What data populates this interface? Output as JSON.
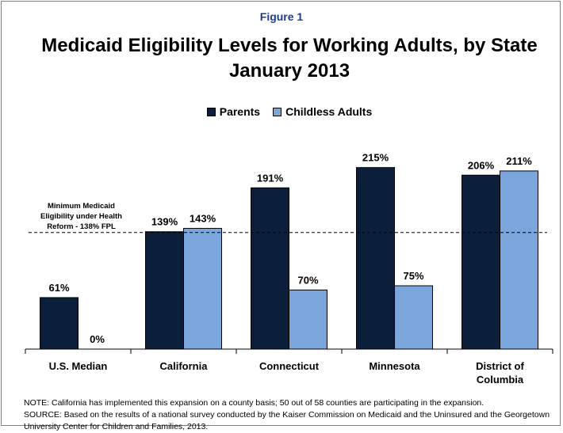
{
  "figure_label": "Figure 1",
  "title_line1": "Medicaid Eligibility Levels for Working Adults, by State",
  "title_line2": "January 2013",
  "reference_label_lines": [
    "Minimum Medicaid",
    "Eligibility under Health",
    "Reform - 138% FPL"
  ],
  "notes": {
    "note": "NOTE: California has implemented this expansion on a county basis; 50 out of 58 counties are participating in the expansion.",
    "source_line1": "SOURCE: Based on the results of a national survey conducted by the Kaiser Commission on Medicaid and the Uninsured and the Georgetown",
    "source_line2": "University Center for Children and Families, 2013."
  },
  "colors": {
    "parents": "#0c1f3a",
    "childless": "#7aa6dc",
    "title_accent": "#1f3b8c"
  },
  "chart_data": {
    "type": "bar",
    "categories": [
      "U.S. Median",
      "California",
      "Connecticut",
      "Minnesota",
      "District of Columbia"
    ],
    "category_label_lines": [
      [
        "U.S. Median"
      ],
      [
        "California"
      ],
      [
        "Connecticut"
      ],
      [
        "Minnesota"
      ],
      [
        "District of",
        "Columbia"
      ]
    ],
    "series": [
      {
        "name": "Parents",
        "values": [
          61,
          139,
          191,
          215,
          206
        ],
        "labels": [
          "61%",
          "139%",
          "191%",
          "215%",
          "206%"
        ]
      },
      {
        "name": "Childless Adults",
        "values": [
          0,
          143,
          70,
          75,
          211
        ],
        "labels": [
          "0%",
          "143%",
          "70%",
          "75%",
          "211%"
        ]
      }
    ],
    "reference_line": {
      "value": 138
    },
    "ylim": [
      0,
      240
    ],
    "legend": "top-center",
    "grid": false,
    "xlabel": "",
    "ylabel": ""
  }
}
